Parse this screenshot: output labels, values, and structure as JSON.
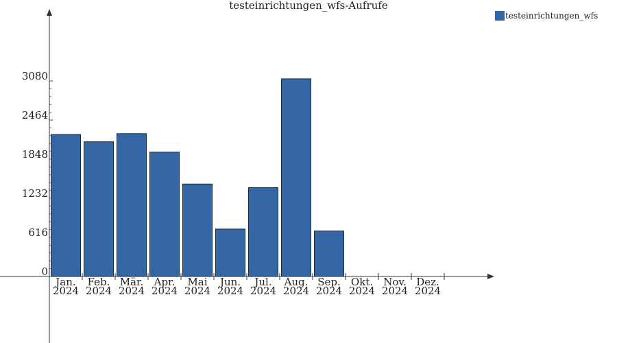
{
  "chart_data": {
    "type": "bar",
    "title": "testeinrichtungen_wfs-Aufrufe",
    "categories": [
      [
        "Jan.",
        "2024"
      ],
      [
        "Feb.",
        "2024"
      ],
      [
        "Mär.",
        "2024"
      ],
      [
        "Apr.",
        "2024"
      ],
      [
        "Mai",
        "2024"
      ],
      [
        "Jun.",
        "2024"
      ],
      [
        "Jul.",
        "2024"
      ],
      [
        "Aug.",
        "2024"
      ],
      [
        "Sep.",
        "2024"
      ],
      [
        "Okt.",
        "2024"
      ],
      [
        "Nov.",
        "2024"
      ],
      [
        "Dez.",
        "2024"
      ]
    ],
    "series": [
      {
        "name": "testeinrichtungen_wfs",
        "color": "#3465a4",
        "values": [
          2237,
          2122,
          2250,
          1959,
          1456,
          747,
          1399,
          3114,
          716,
          0,
          0,
          0
        ]
      }
    ],
    "yticks": [
      "0",
      "616",
      "1232",
      "1848",
      "2464",
      "3080"
    ],
    "ylim": [
      0,
      3080
    ],
    "legend": "top-right",
    "grid": false
  }
}
